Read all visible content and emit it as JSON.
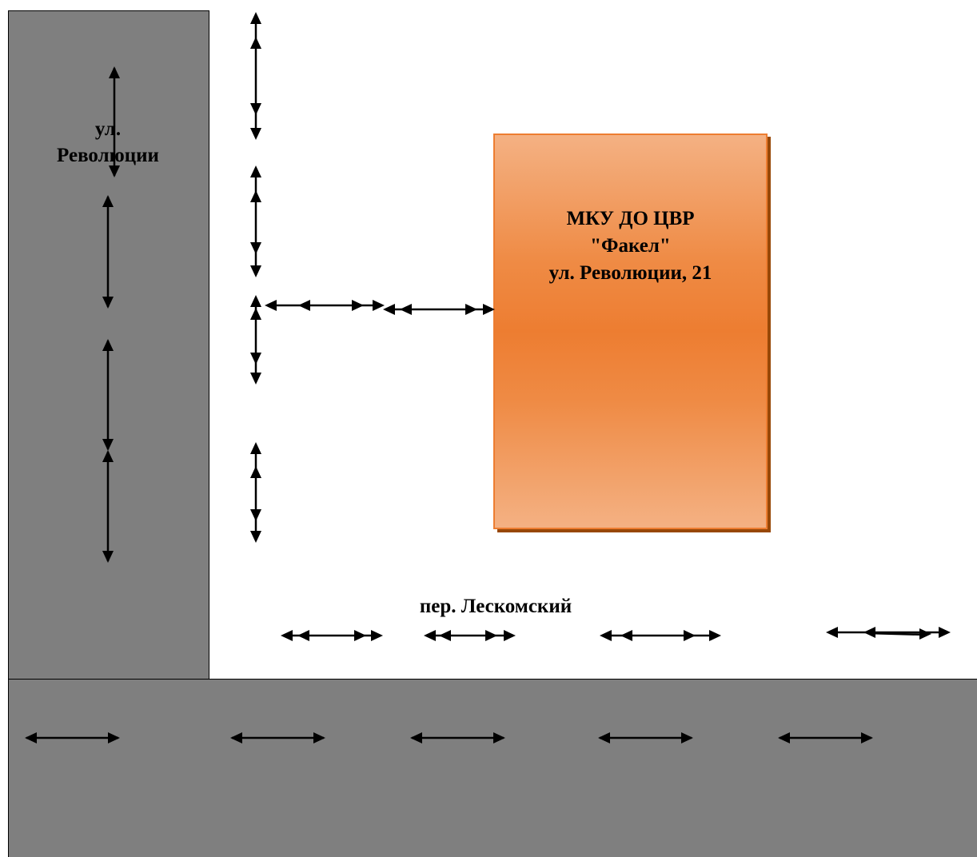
{
  "map": {
    "street_revolucii": "ул.\nРеволюции",
    "street_leskomsky": "пер. Лескомский",
    "building": {
      "line1": "МКУ ДО ЦВР",
      "line2": "\"Факел\"",
      "line3": "ул. Революции, 21"
    },
    "colors": {
      "road": "#7f7f7f",
      "building_fill": "#ed7d31",
      "building_light": "#f4b183",
      "building_shadow": "#984807",
      "arrow": "#000000"
    },
    "icons": [
      "two-way-traffic-arrow-icon",
      "pedestrian-route-arrow-icon"
    ]
  }
}
